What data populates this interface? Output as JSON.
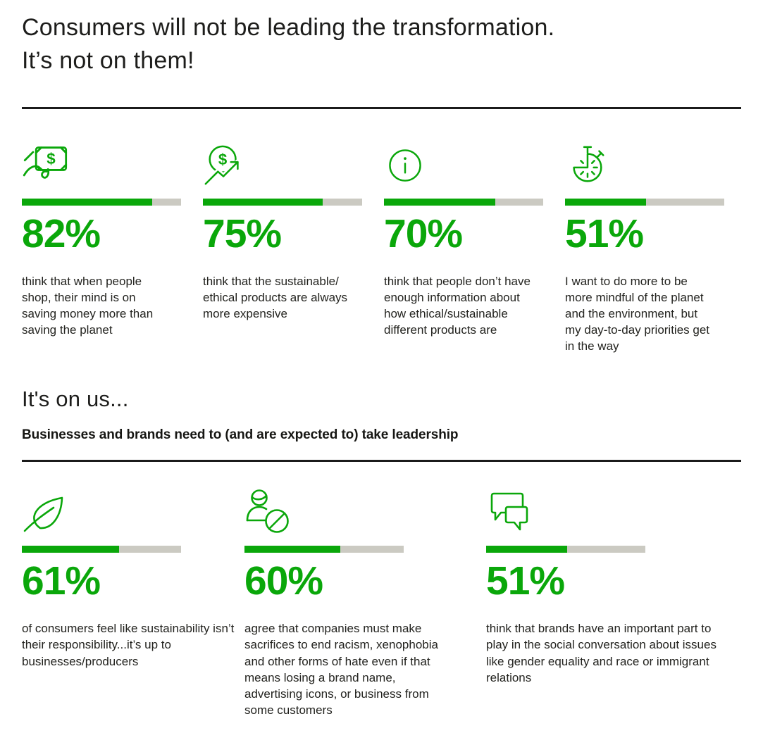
{
  "page": {
    "title_line1": "Consumers will not be leading the transformation.",
    "title_line2": "It’s not on them!"
  },
  "colors": {
    "accent_green": "#0aa70a",
    "bar_track_grey": "#cbcac2",
    "text_ink": "#1d1d1b"
  },
  "sections": [
    {
      "cards": [
        {
          "icon": "money-in-hand-icon",
          "percent": 82,
          "percent_label": "82%",
          "description": "think that when people shop, their mind is on saving money more than saving the planet"
        },
        {
          "icon": "price-increase-icon",
          "percent": 75,
          "percent_label": "75%",
          "description": "think that the sustainable/ ethical products are always more expensive"
        },
        {
          "icon": "info-icon",
          "percent": 70,
          "percent_label": "70%",
          "description": "think that people don’t have enough information about how ethical/sustainable different products are"
        },
        {
          "icon": "stopwatch-icon",
          "percent": 51,
          "percent_label": "51%",
          "description": "I want to do more to be more mindful of the planet and the environment, but my day-to-day priorities get in the way"
        }
      ]
    },
    {
      "heading": "It's on us...",
      "subheading": "Businesses and brands need to (and are expected to) take leadership",
      "cards": [
        {
          "icon": "leaf-icon",
          "percent": 61,
          "percent_label": "61%",
          "description": "of consumers feel like sustainability isn’t their responsibility...it’s up to businesses/producers"
        },
        {
          "icon": "person-ban-icon",
          "percent": 60,
          "percent_label": "60%",
          "description": "agree that companies must make sacrifices to end racism, xenophobia and other forms of hate even if that means losing a brand name, advertising icons, or business from some customers"
        },
        {
          "icon": "chat-bubbles-icon",
          "percent": 51,
          "percent_label": "51%",
          "description": "think that brands have an important part to play in the social conversation about issues like gender equality and race or immigrant relations"
        }
      ]
    }
  ],
  "chart_data": [
    {
      "type": "bar",
      "title": "Consumers will not be leading the transformation. It’s not on them!",
      "categories": [
        "think that when people shop, their mind is on saving money more than saving the planet",
        "think that the sustainable/ ethical products are always more expensive",
        "think that people don’t have enough information about how ethical/sustainable different products are",
        "I want to do more to be more mindful of the planet and the environment, but my day-to-day priorities get in the way"
      ],
      "values": [
        82,
        75,
        70,
        51
      ],
      "value_labels": [
        "82%",
        "75%",
        "70%",
        "51%"
      ],
      "xlabel": "",
      "ylabel": "",
      "ylim": [
        0,
        100
      ],
      "grid": false,
      "legend": false
    },
    {
      "type": "bar",
      "title": "It's on us... Businesses and brands need to (and are expected to) take leadership",
      "categories": [
        "of consumers feel like sustainability isn’t their responsibility...it’s up to businesses/producers",
        "agree that companies must make sacrifices to end racism, xenophobia and other forms of hate even if that means losing a brand name, advertising icons, or business from some customers",
        "think that brands have an important part to play in the social conversation about issues like gender equality and race or immigrant relations"
      ],
      "values": [
        61,
        60,
        51
      ],
      "value_labels": [
        "61%",
        "60%",
        "51%"
      ],
      "xlabel": "",
      "ylabel": "",
      "ylim": [
        0,
        100
      ],
      "grid": false,
      "legend": false
    }
  ]
}
